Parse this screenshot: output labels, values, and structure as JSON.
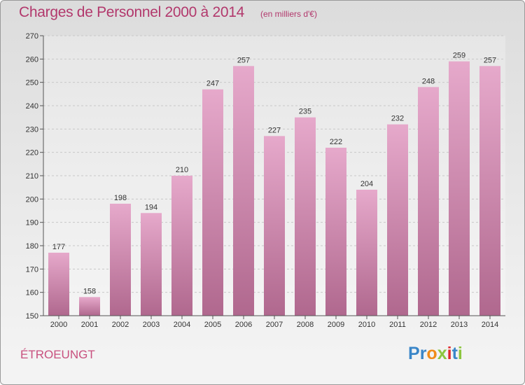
{
  "chart": {
    "title": "Charges de Personnel 2000 à 2014",
    "subtitle": "(en milliers d'€)"
  },
  "commune": "ÉTROEUNGT",
  "brand": {
    "letters": [
      {
        "char": "P",
        "color": "#3a86c8"
      },
      {
        "char": "r",
        "color": "#3a86c8"
      },
      {
        "char": "o",
        "color": "#f08c1a"
      },
      {
        "char": "x",
        "color": "#8cc63f"
      },
      {
        "char": "i",
        "color": "#e0282c"
      },
      {
        "char": "t",
        "color": "#3a86c8"
      },
      {
        "char": "i",
        "color": "#8cc63f"
      }
    ]
  },
  "chart_data": {
    "type": "bar",
    "categories": [
      "2000",
      "2001",
      "2002",
      "2003",
      "2004",
      "2005",
      "2006",
      "2007",
      "2008",
      "2009",
      "2010",
      "2011",
      "2012",
      "2013",
      "2014"
    ],
    "values": [
      177,
      158,
      198,
      194,
      210,
      247,
      257,
      227,
      235,
      222,
      204,
      232,
      248,
      259,
      257
    ],
    "title": "Charges de Personnel 2000 à 2014",
    "subtitle": "(en milliers d'€)",
    "xlabel": "",
    "ylabel": "",
    "ylim": [
      150,
      270
    ],
    "yticks": [
      150,
      160,
      170,
      180,
      190,
      200,
      210,
      220,
      230,
      240,
      250,
      260,
      270
    ],
    "grid": true,
    "bar_color_top": "#e6a9cb",
    "bar_color_bottom": "#b0688e"
  }
}
